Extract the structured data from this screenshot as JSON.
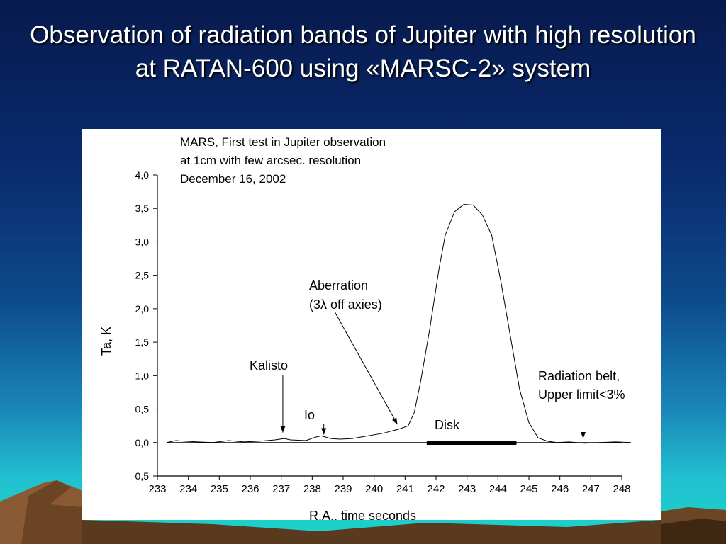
{
  "slide": {
    "title": "Observation of radiation bands of Jupiter with high resolution at RATAN-600 using «MARSC-2» system"
  },
  "chart_data": {
    "type": "line",
    "title_lines": [
      "MARS, First test in Jupiter observation",
      "at 1cm with few arcsec. resolution",
      "December 16, 2002"
    ],
    "xlabel": "R.A., time seconds",
    "ylabel": "Ta, K",
    "xlim": [
      233,
      248
    ],
    "ylim": [
      -0.5,
      4.0
    ],
    "xticks": [
      "233",
      "234",
      "235",
      "236",
      "237",
      "238",
      "239",
      "240",
      "241",
      "242",
      "243",
      "244",
      "245",
      "246",
      "247",
      "248"
    ],
    "yticks": [
      "4,0",
      "3,5",
      "3,0",
      "2,5",
      "2,0",
      "1,5",
      "1,0",
      "0,5",
      "0,0",
      "-0,5"
    ],
    "series": [
      {
        "x": [
          233.0,
          233.3,
          233.6,
          234.0,
          234.5,
          235.0,
          235.5,
          236.0,
          236.5,
          236.8,
          237.0,
          237.5,
          237.8,
          238.0,
          238.3,
          238.6,
          239.0,
          239.5,
          240.0,
          240.5,
          240.8,
          241.0,
          241.2,
          241.5,
          241.8,
          242.0,
          242.3,
          242.6,
          242.9,
          243.2,
          243.5,
          243.8,
          244.1,
          244.4,
          244.7,
          245.0,
          245.3,
          245.6,
          246.0,
          246.5,
          247.0,
          247.5,
          248.0
        ],
        "y": [
          0.0,
          0.03,
          0.02,
          0.01,
          0.0,
          0.03,
          0.01,
          0.02,
          0.04,
          0.06,
          0.04,
          0.03,
          0.08,
          0.1,
          0.06,
          0.05,
          0.06,
          0.1,
          0.14,
          0.2,
          0.25,
          0.45,
          0.9,
          1.7,
          2.6,
          3.1,
          3.45,
          3.56,
          3.55,
          3.4,
          3.1,
          2.4,
          1.6,
          0.8,
          0.3,
          0.07,
          0.02,
          0.0,
          0.01,
          -0.01,
          0.0,
          0.01,
          0.0
        ]
      }
    ],
    "disk_bar": {
      "x_start": 241.4,
      "x_end": 244.3,
      "y": 0.03
    },
    "annotations": [
      {
        "label": "Kalisto",
        "arrow_x": 236.8,
        "arrow_y": 0.15
      },
      {
        "label": "Io",
        "arrow_x": 238.1,
        "arrow_y": 0.12
      },
      {
        "label_lines": [
          "Aberration",
          "(3λ off axies)"
        ],
        "arrow_x": 240.5,
        "arrow_y": 0.25
      },
      {
        "label": "Disk"
      },
      {
        "label_lines": [
          "Radiation belt,",
          "Upper limit<3%"
        ],
        "arrow_x": 246.5,
        "arrow_y": 0.05
      }
    ],
    "grid": false,
    "legend": "none",
    "line_color": "#000000"
  }
}
